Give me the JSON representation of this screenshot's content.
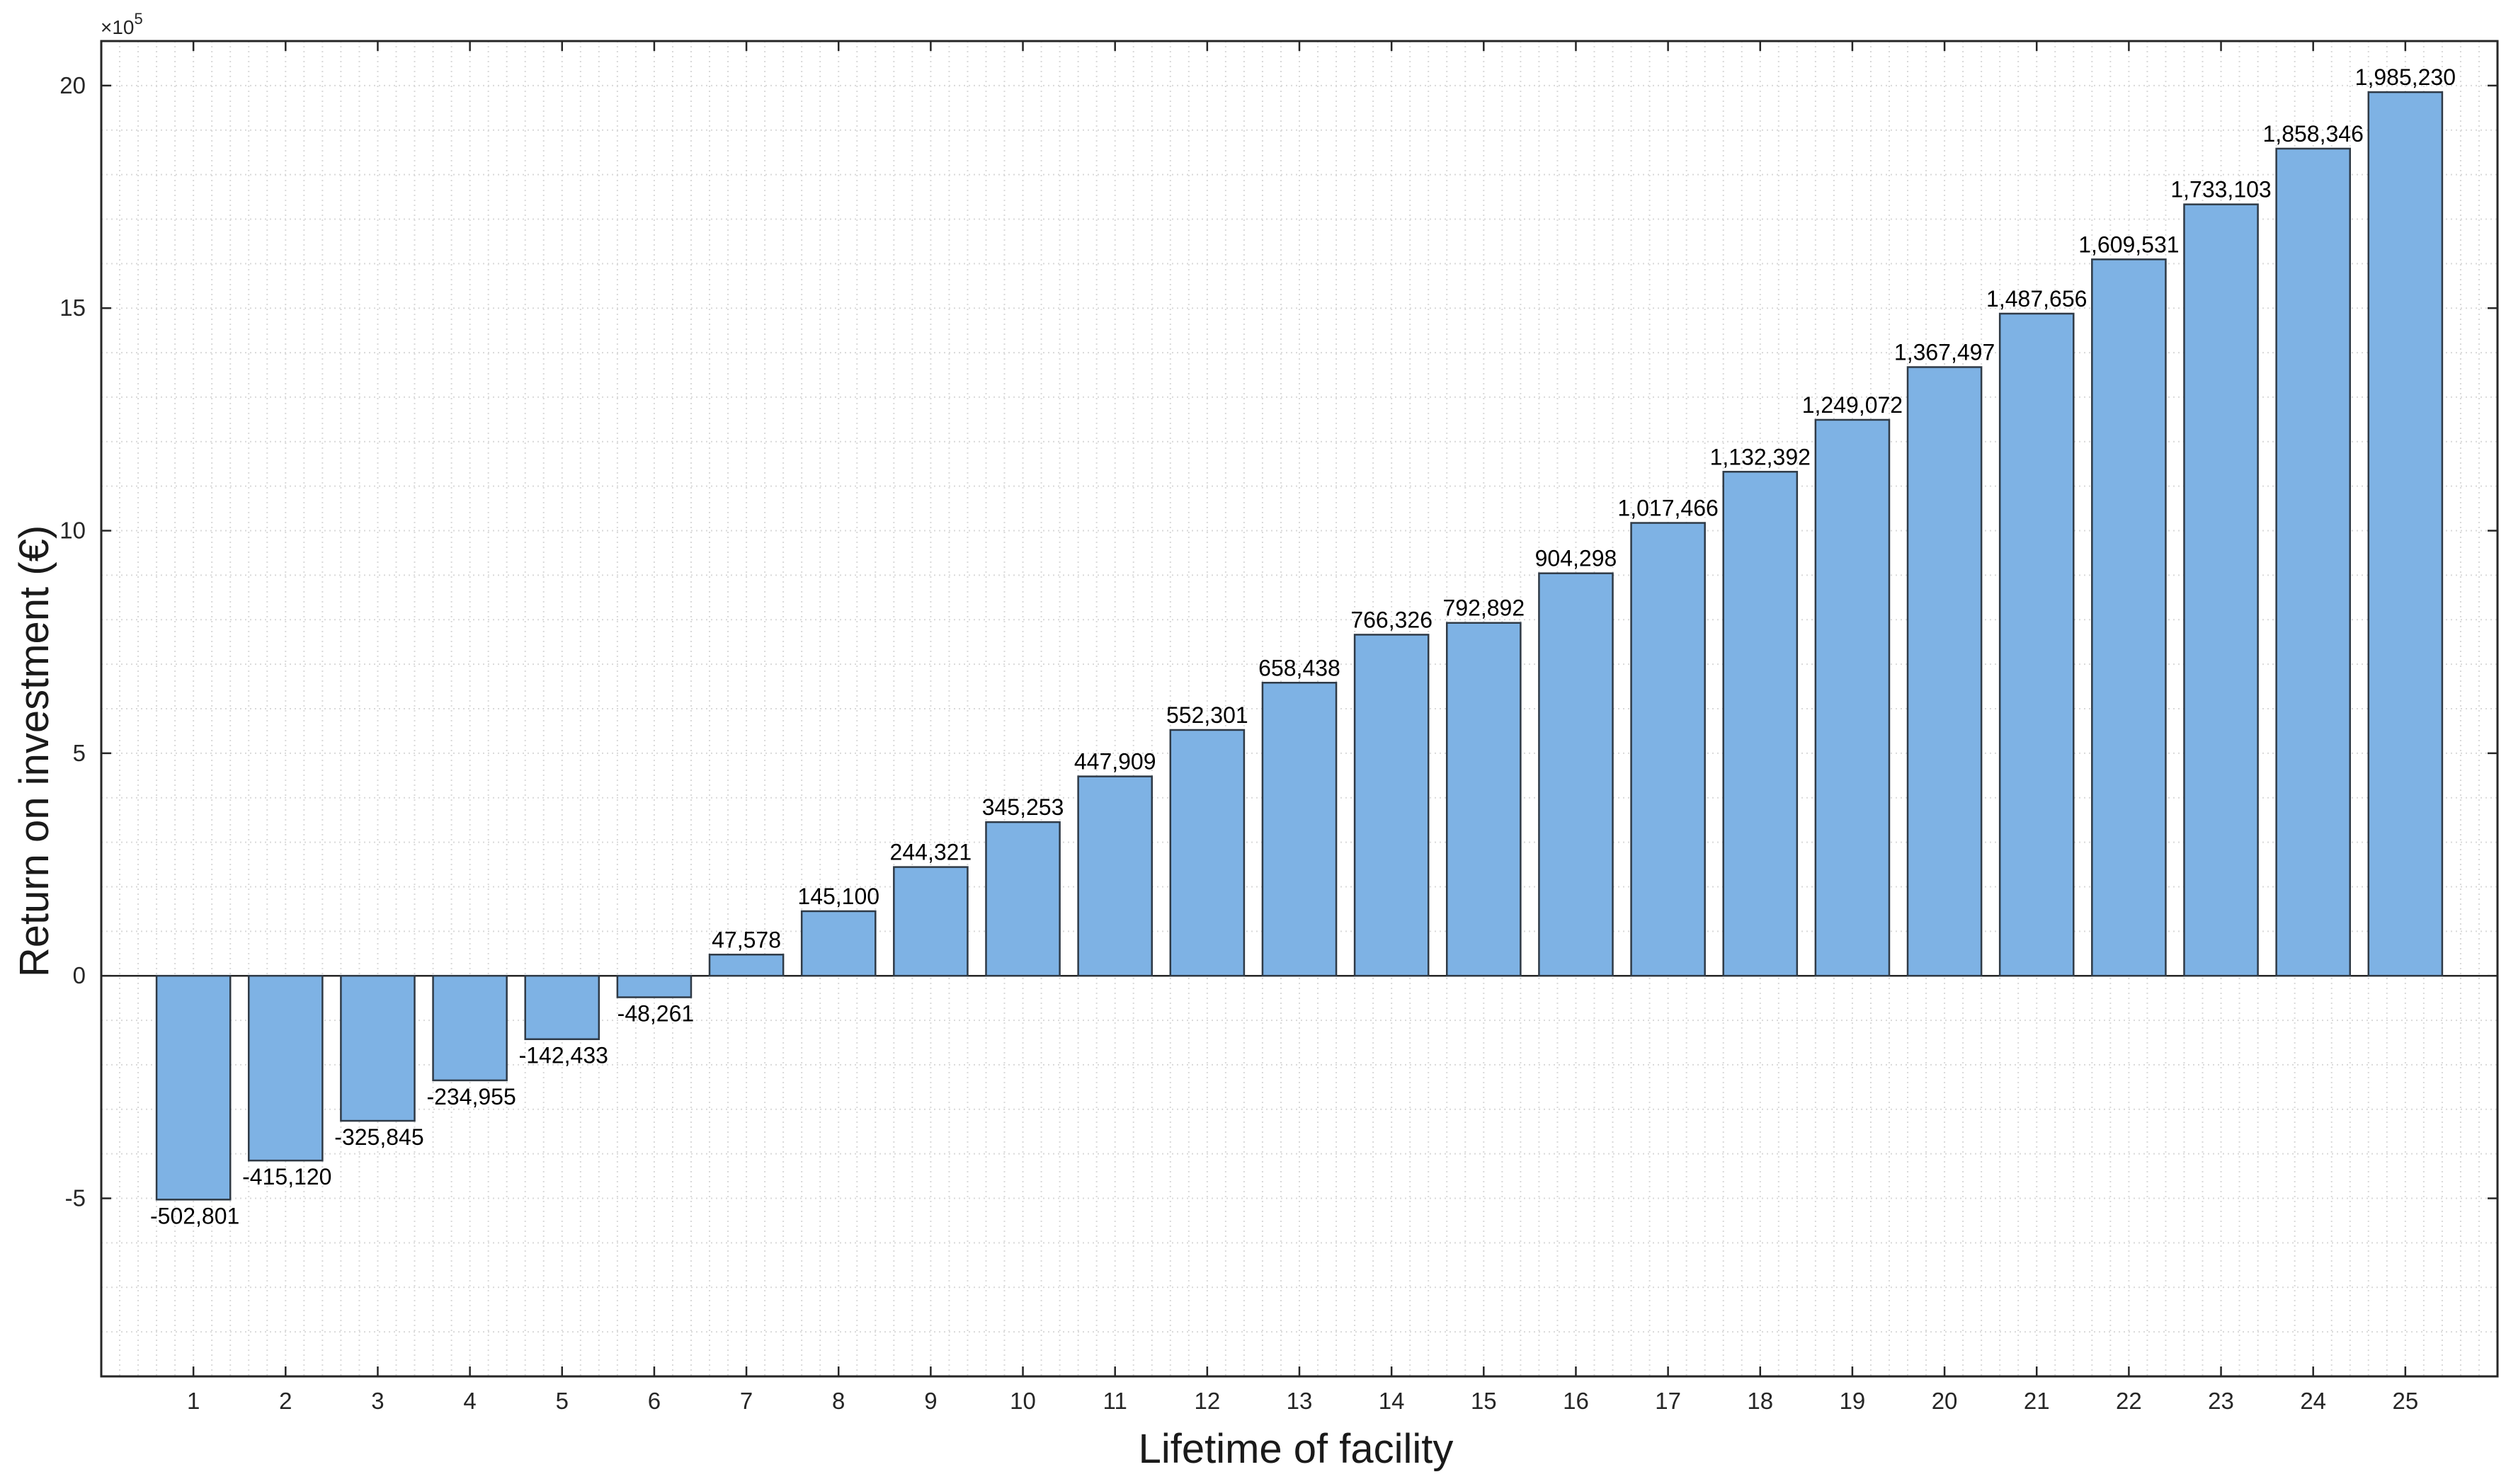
{
  "chart_data": {
    "type": "bar",
    "categories": [
      "1",
      "2",
      "3",
      "4",
      "5",
      "6",
      "7",
      "8",
      "9",
      "10",
      "11",
      "12",
      "13",
      "14",
      "15",
      "16",
      "17",
      "18",
      "19",
      "20",
      "21",
      "22",
      "23",
      "24",
      "25"
    ],
    "values": [
      -502801,
      -415120,
      -325845,
      -234955,
      -142433,
      -48261,
      47578,
      145100,
      244321,
      345253,
      447909,
      552301,
      658438,
      766326,
      792892,
      904298,
      1017466,
      1132392,
      1249072,
      1367497,
      1487656,
      1609531,
      1733103,
      1858346,
      1985230
    ],
    "data_labels": [
      "-502,801",
      "-415,120",
      "-325,845",
      "-234,955",
      "-142,433",
      "-48,261",
      "47,578",
      "145,100",
      "244,321",
      "345,253",
      "447,909",
      "552,301",
      "658,438",
      "766,326",
      "792,892",
      "904,298",
      "1,017,466",
      "1,132,392",
      "1,249,072",
      "1,367,497",
      "1,487,656",
      "1,609,531",
      "1,733,103",
      "1,858,346",
      "1,985,230"
    ],
    "xlabel": "Lifetime of facility",
    "ylabel": "Return on investment (€)",
    "y_multiplier": "×10",
    "y_multiplier_exp": "5",
    "y_ticks": [
      -5,
      0,
      5,
      10,
      15,
      20
    ],
    "y_scale": 100000,
    "ylim": [
      -900000,
      2100000
    ],
    "grid": "minor dotted",
    "colors": {
      "bar_fill": "#7EB2E4",
      "bar_stroke": "#2f3a46",
      "axis": "#262626",
      "grid": "#d9d9d9"
    }
  }
}
